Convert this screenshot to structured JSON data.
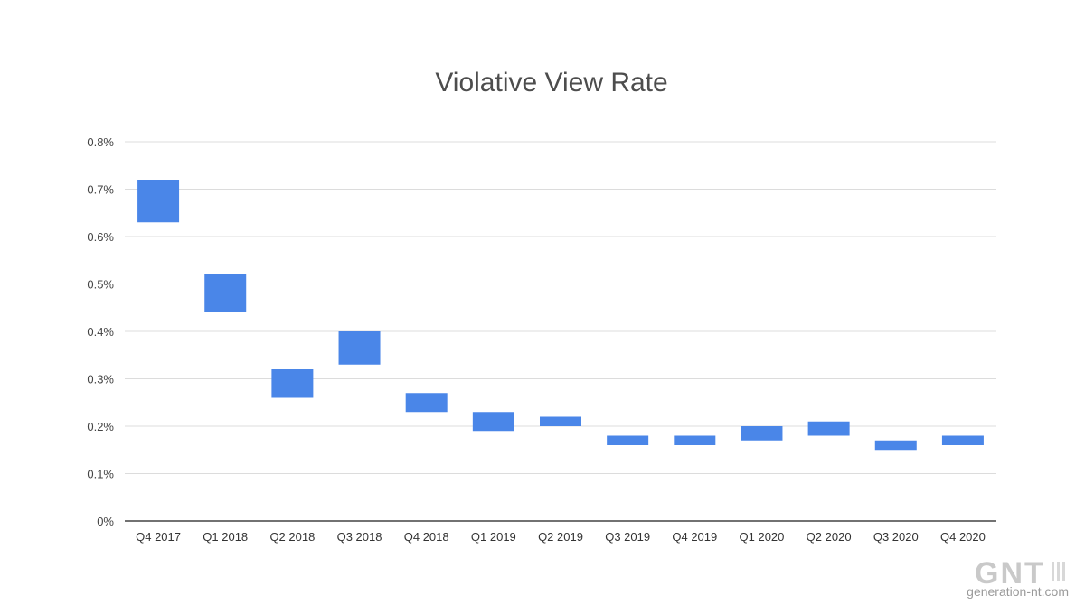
{
  "chart_data": {
    "type": "bar",
    "subtype": "floating-range",
    "title": "Violative View Rate",
    "xlabel": "",
    "ylabel": "",
    "ylim": [
      0,
      0.8
    ],
    "y_ticks": [
      "0%",
      "0.1%",
      "0.2%",
      "0.3%",
      "0.4%",
      "0.5%",
      "0.6%",
      "0.7%",
      "0.8%"
    ],
    "y_tick_values": [
      0,
      0.1,
      0.2,
      0.3,
      0.4,
      0.5,
      0.6,
      0.7,
      0.8
    ],
    "grid": true,
    "legend": "none",
    "bar_color": "#4a86e8",
    "categories": [
      "Q4 2017",
      "Q1 2018",
      "Q2 2018",
      "Q3 2018",
      "Q4 2018",
      "Q1 2019",
      "Q2 2019",
      "Q3 2019",
      "Q4 2019",
      "Q1 2020",
      "Q2 2020",
      "Q3 2020",
      "Q4 2020"
    ],
    "low": [
      0.63,
      0.44,
      0.26,
      0.33,
      0.23,
      0.19,
      0.2,
      0.16,
      0.16,
      0.17,
      0.18,
      0.15,
      0.16
    ],
    "high": [
      0.72,
      0.52,
      0.32,
      0.4,
      0.27,
      0.23,
      0.22,
      0.18,
      0.18,
      0.2,
      0.21,
      0.17,
      0.18
    ]
  },
  "watermark": {
    "brand": "GNT",
    "url": "generation-nt.com"
  }
}
